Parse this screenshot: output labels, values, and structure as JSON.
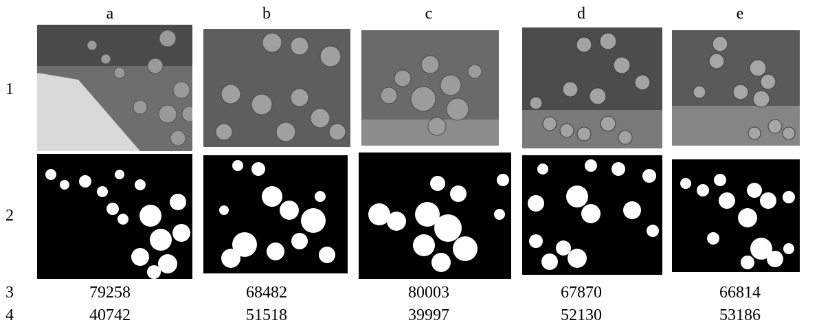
{
  "columns": [
    "a",
    "b",
    "c",
    "d",
    "e"
  ],
  "rows": [
    "1",
    "2",
    "3",
    "4"
  ],
  "values_row3": [
    "79258",
    "68482",
    "80003",
    "67870",
    "66814"
  ],
  "values_row4": [
    "40742",
    "51518",
    "39997",
    "52130",
    "53186"
  ],
  "panel_contents": {
    "row1": "grayscale tomato photos",
    "row2": "binary segmentation masks"
  }
}
